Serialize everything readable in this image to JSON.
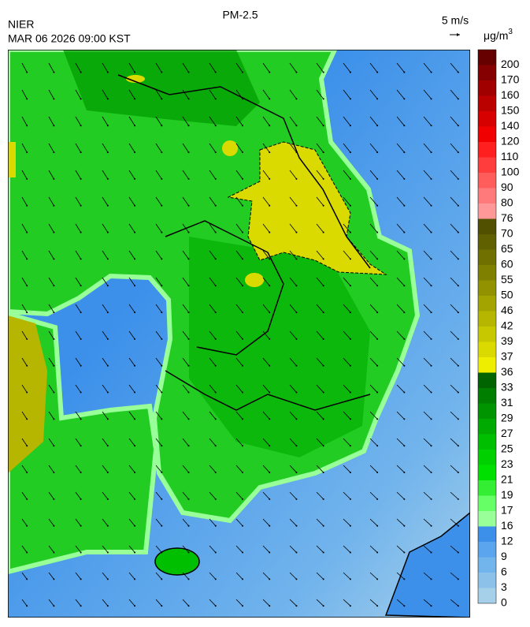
{
  "header": {
    "title": "PM-2.5",
    "agency": "NIER",
    "datetime": "MAR 06 2026 09:00 KST",
    "wind_scale": "5 m/s"
  },
  "colorbar": {
    "unit": {
      "base": "μg/m",
      "sup": "3"
    },
    "labels": [
      0,
      3,
      6,
      9,
      12,
      16,
      17,
      19,
      21,
      23,
      25,
      27,
      29,
      31,
      33,
      36,
      37,
      39,
      42,
      46,
      50,
      55,
      60,
      65,
      70,
      76,
      80,
      90,
      100,
      110,
      120,
      140,
      150,
      160,
      170,
      200
    ],
    "colors": [
      "#a6d0ea",
      "#8cc2ea",
      "#72b4ec",
      "#5aa5ee",
      "#3c90ea",
      "#99ff99",
      "#66ff66",
      "#33ee33",
      "#00e000",
      "#00d000",
      "#00bf00",
      "#00aa00",
      "#009400",
      "#007e00",
      "#006400",
      "#eeee00",
      "#dada00",
      "#c8c800",
      "#b6b600",
      "#a4a400",
      "#929200",
      "#808000",
      "#707000",
      "#606000",
      "#505000",
      "#ff9999",
      "#ff7a7a",
      "#ff5c5c",
      "#ff3d3d",
      "#ff1f1f",
      "#f00000",
      "#d60000",
      "#bb0000",
      "#a00000",
      "#850000",
      "#660000"
    ]
  }
}
